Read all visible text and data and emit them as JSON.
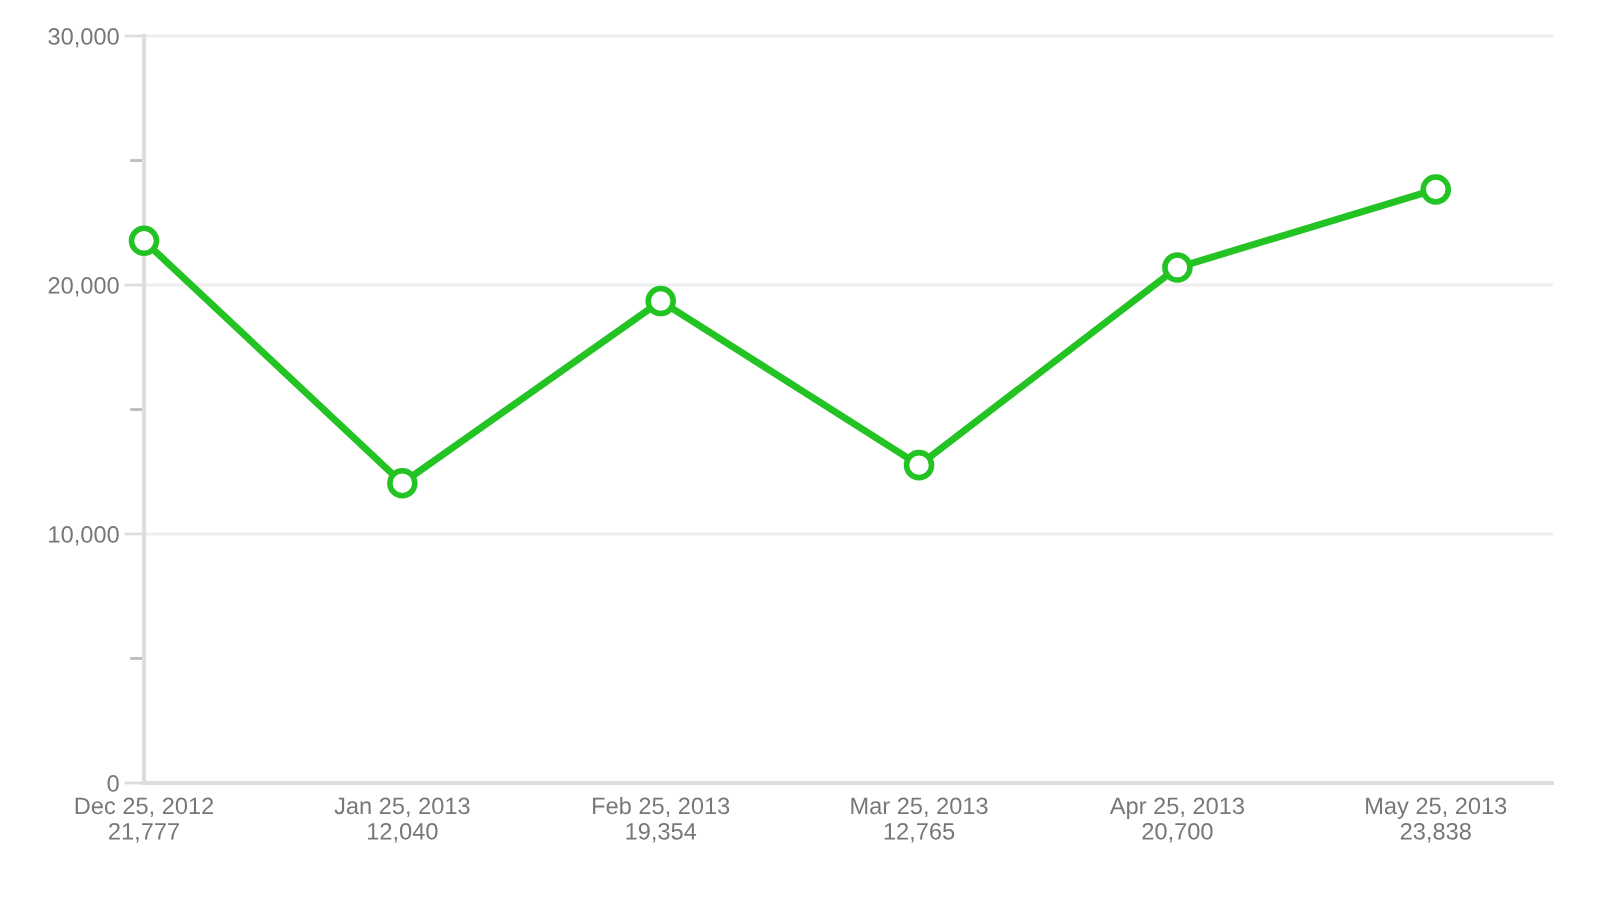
{
  "chart_data": {
    "type": "line",
    "categories": [
      "Dec 25, 2012",
      "Jan 25, 2013",
      "Feb 25, 2013",
      "Mar 25, 2013",
      "Apr 25, 2013",
      "May 25, 2013"
    ],
    "series": [
      {
        "color": "#22c322",
        "values": [
          21777,
          12040,
          19354,
          12765,
          20700,
          23838
        ],
        "value_labels": [
          "21,777",
          "12,040",
          "19,354",
          "12,765",
          "20,700",
          "23,838"
        ]
      }
    ],
    "ylim": [
      0,
      30000
    ],
    "yticks": [
      {
        "value": 0,
        "label": "0"
      },
      {
        "value": 5000,
        "label": null
      },
      {
        "value": 10000,
        "label": "10,000"
      },
      {
        "value": 15000,
        "label": null
      },
      {
        "value": 20000,
        "label": "20,000"
      },
      {
        "value": 25000,
        "label": null
      },
      {
        "value": 30000,
        "label": "30,000"
      }
    ],
    "grid": "y",
    "marker": "circle",
    "line_style": "solid",
    "legend": false
  }
}
